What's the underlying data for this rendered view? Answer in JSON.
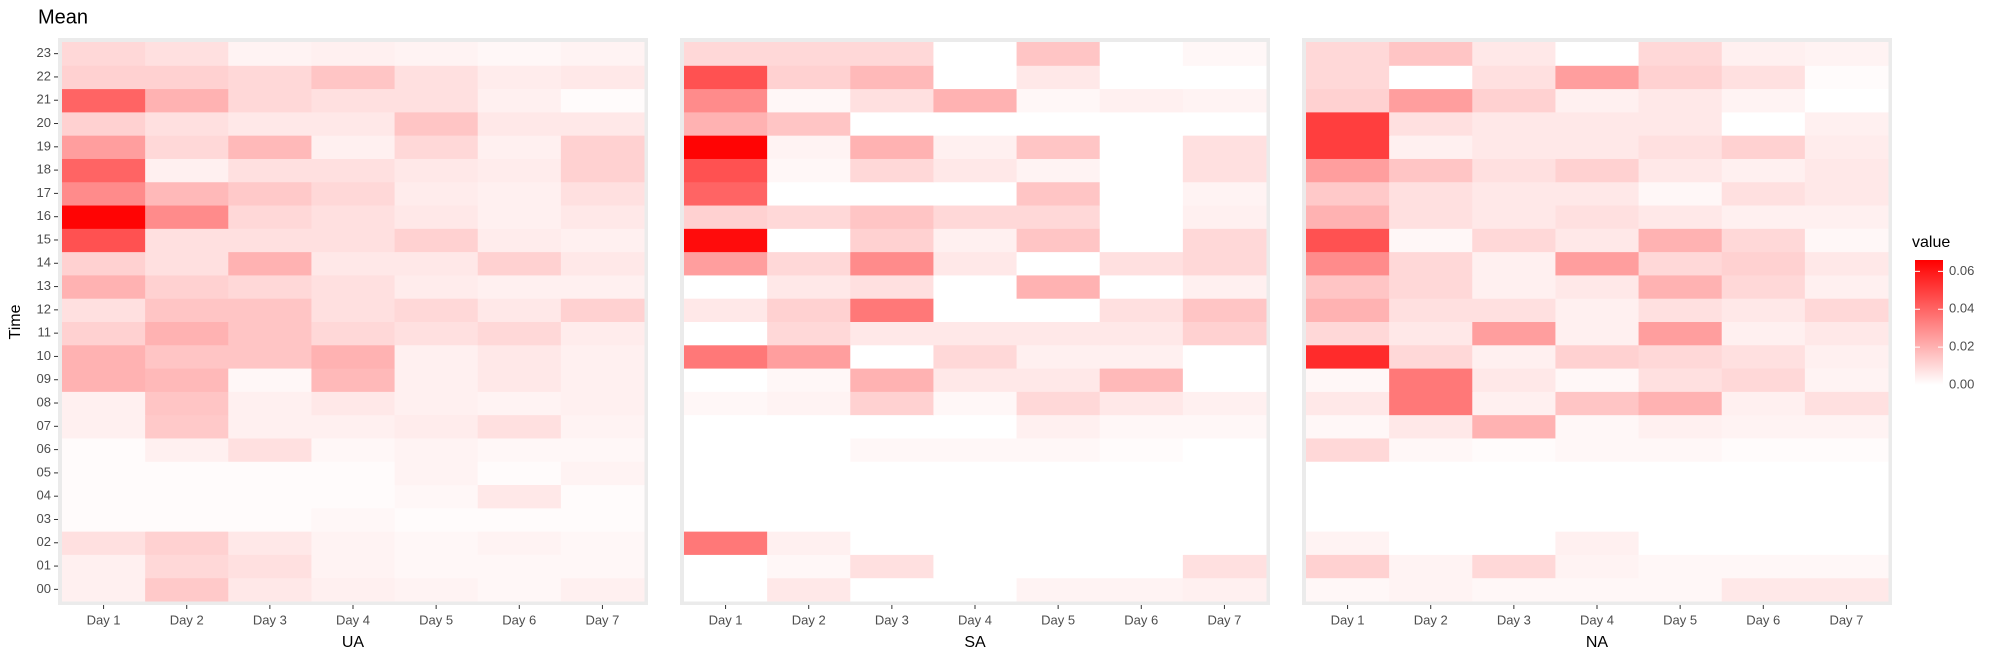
{
  "chart_data": {
    "type": "heatmap",
    "title": "Mean",
    "y_label": "Time",
    "categories": [
      "Day 1",
      "Day 2",
      "Day 3",
      "Day 4",
      "Day 5",
      "Day 6",
      "Day 7"
    ],
    "rows": [
      "00",
      "01",
      "02",
      "03",
      "04",
      "05",
      "06",
      "07",
      "08",
      "09",
      "10",
      "11",
      "12",
      "13",
      "14",
      "15",
      "16",
      "17",
      "18",
      "19",
      "20",
      "21",
      "22",
      "23"
    ],
    "panels": [
      {
        "name": "UA",
        "values": [
          [
            0.004,
            0.014,
            0.006,
            0.004,
            0.003,
            0.002,
            0.004
          ],
          [
            0.004,
            0.01,
            0.008,
            0.003,
            0.002,
            0.002,
            0.002
          ],
          [
            0.008,
            0.012,
            0.006,
            0.003,
            0.002,
            0.003,
            0.002
          ],
          [
            0.001,
            0.001,
            0.001,
            0.002,
            0.001,
            0.001,
            0.001
          ],
          [
            0.001,
            0.001,
            0.001,
            0.001,
            0.002,
            0.006,
            0.001
          ],
          [
            0.001,
            0.001,
            0.001,
            0.001,
            0.003,
            0.001,
            0.003
          ],
          [
            0.001,
            0.004,
            0.008,
            0.002,
            0.003,
            0.002,
            0.002
          ],
          [
            0.004,
            0.014,
            0.004,
            0.004,
            0.005,
            0.008,
            0.003
          ],
          [
            0.004,
            0.015,
            0.004,
            0.006,
            0.004,
            0.003,
            0.004
          ],
          [
            0.02,
            0.018,
            0.002,
            0.018,
            0.004,
            0.006,
            0.004
          ],
          [
            0.02,
            0.015,
            0.015,
            0.02,
            0.004,
            0.006,
            0.004
          ],
          [
            0.012,
            0.02,
            0.015,
            0.01,
            0.008,
            0.01,
            0.005
          ],
          [
            0.008,
            0.015,
            0.015,
            0.008,
            0.01,
            0.006,
            0.012
          ],
          [
            0.02,
            0.012,
            0.01,
            0.008,
            0.005,
            0.004,
            0.004
          ],
          [
            0.012,
            0.008,
            0.02,
            0.006,
            0.006,
            0.012,
            0.006
          ],
          [
            0.045,
            0.008,
            0.008,
            0.008,
            0.012,
            0.005,
            0.004
          ],
          [
            0.065,
            0.03,
            0.01,
            0.008,
            0.006,
            0.004,
            0.006
          ],
          [
            0.03,
            0.018,
            0.014,
            0.01,
            0.005,
            0.004,
            0.008
          ],
          [
            0.04,
            0.004,
            0.008,
            0.008,
            0.006,
            0.005,
            0.012
          ],
          [
            0.025,
            0.01,
            0.018,
            0.004,
            0.01,
            0.004,
            0.012
          ],
          [
            0.012,
            0.008,
            0.006,
            0.006,
            0.015,
            0.006,
            0.006
          ],
          [
            0.04,
            0.02,
            0.01,
            0.008,
            0.008,
            0.004,
            0.001
          ],
          [
            0.012,
            0.012,
            0.01,
            0.015,
            0.008,
            0.005,
            0.006
          ],
          [
            0.01,
            0.008,
            0.003,
            0.004,
            0.003,
            0.002,
            0.003
          ]
        ]
      },
      {
        "name": "SA",
        "values": [
          [
            0,
            0.006,
            0,
            0,
            0.003,
            0.003,
            0.004
          ],
          [
            0,
            0.002,
            0.008,
            0,
            0,
            0,
            0.008
          ],
          [
            0.035,
            0.004,
            0,
            0,
            0,
            0,
            0
          ],
          [
            0,
            0,
            0,
            0,
            0,
            0,
            0
          ],
          [
            0,
            0,
            0,
            0,
            0,
            0,
            0
          ],
          [
            0,
            0,
            0,
            0,
            0,
            0,
            0
          ],
          [
            0,
            0,
            0.002,
            0.002,
            0.002,
            0.001,
            0
          ],
          [
            0,
            0,
            0,
            0,
            0.004,
            0.002,
            0.002
          ],
          [
            0.002,
            0.003,
            0.012,
            0.002,
            0.01,
            0.006,
            0.004
          ],
          [
            0,
            0.002,
            0.02,
            0.006,
            0.006,
            0.018,
            0
          ],
          [
            0.035,
            0.025,
            0,
            0.01,
            0.004,
            0.004,
            0
          ],
          [
            0,
            0.01,
            0.006,
            0.006,
            0.006,
            0.006,
            0.012
          ],
          [
            0.006,
            0.012,
            0.035,
            0,
            0,
            0.008,
            0.015
          ],
          [
            0,
            0.006,
            0.008,
            0,
            0.02,
            0,
            0.004
          ],
          [
            0.025,
            0.01,
            0.03,
            0.006,
            0,
            0.008,
            0.01
          ],
          [
            0.063,
            0,
            0.012,
            0.004,
            0.015,
            0,
            0.01
          ],
          [
            0.012,
            0.01,
            0.015,
            0.01,
            0.01,
            0,
            0.004
          ],
          [
            0.04,
            0,
            0,
            0,
            0.015,
            0,
            0.003
          ],
          [
            0.045,
            0.002,
            0.01,
            0.006,
            0.003,
            0,
            0.008
          ],
          [
            0.065,
            0.003,
            0.02,
            0.004,
            0.015,
            0,
            0.008
          ],
          [
            0.02,
            0.015,
            0,
            0,
            0,
            0,
            0
          ],
          [
            0.03,
            0.002,
            0.008,
            0.02,
            0.002,
            0.004,
            0.003
          ],
          [
            0.045,
            0.012,
            0.018,
            0,
            0.006,
            0,
            0
          ],
          [
            0.01,
            0.01,
            0.01,
            0,
            0.015,
            0,
            0.002
          ]
        ]
      },
      {
        "name": "NA",
        "values": [
          [
            0.002,
            0.003,
            0.002,
            0.002,
            0.002,
            0.006,
            0.006
          ],
          [
            0.012,
            0.003,
            0.01,
            0.003,
            0.002,
            0.002,
            0.002
          ],
          [
            0.003,
            0,
            0,
            0.004,
            0,
            0,
            0
          ],
          [
            0,
            0,
            0,
            0,
            0,
            0,
            0
          ],
          [
            0,
            0,
            0,
            0,
            0,
            0,
            0
          ],
          [
            0,
            0,
            0,
            0,
            0,
            0,
            0
          ],
          [
            0.01,
            0.002,
            0.001,
            0.002,
            0.002,
            0.001,
            0.001
          ],
          [
            0.002,
            0.006,
            0.02,
            0.002,
            0.004,
            0.003,
            0.003
          ],
          [
            0.006,
            0.035,
            0.004,
            0.015,
            0.02,
            0.004,
            0.008
          ],
          [
            0.002,
            0.035,
            0.006,
            0.002,
            0.008,
            0.01,
            0.003
          ],
          [
            0.055,
            0.01,
            0.004,
            0.012,
            0.01,
            0.008,
            0.004
          ],
          [
            0.01,
            0.006,
            0.025,
            0.004,
            0.025,
            0.004,
            0.006
          ],
          [
            0.02,
            0.008,
            0.008,
            0.004,
            0.008,
            0.006,
            0.01
          ],
          [
            0.015,
            0.01,
            0.004,
            0.006,
            0.02,
            0.01,
            0.004
          ],
          [
            0.03,
            0.01,
            0.004,
            0.025,
            0.01,
            0.012,
            0.006
          ],
          [
            0.045,
            0.002,
            0.01,
            0.006,
            0.02,
            0.01,
            0.002
          ],
          [
            0.02,
            0.008,
            0.006,
            0.008,
            0.006,
            0.004,
            0.004
          ],
          [
            0.014,
            0.008,
            0.006,
            0.006,
            0.002,
            0.008,
            0.006
          ],
          [
            0.025,
            0.015,
            0.008,
            0.012,
            0.006,
            0.004,
            0.006
          ],
          [
            0.05,
            0.004,
            0.006,
            0.006,
            0.008,
            0.012,
            0.005
          ],
          [
            0.05,
            0.008,
            0.006,
            0.006,
            0.006,
            0,
            0.004
          ],
          [
            0.012,
            0.025,
            0.012,
            0.004,
            0.006,
            0.003,
            0
          ],
          [
            0.01,
            0,
            0.008,
            0.025,
            0.012,
            0.008,
            0.001
          ],
          [
            0.01,
            0.015,
            0.006,
            0,
            0.01,
            0.004,
            0.003
          ]
        ]
      }
    ],
    "legend_title": "value",
    "color_low": "#ffffff",
    "color_high": "#ff0000",
    "clim": [
      0,
      0.066
    ],
    "cticks": [
      {
        "value": 0,
        "label": "0.00"
      },
      {
        "value": 0.02,
        "label": "0.02"
      },
      {
        "value": 0.04,
        "label": "0.04"
      },
      {
        "value": 0.06,
        "label": "0.06"
      }
    ]
  }
}
